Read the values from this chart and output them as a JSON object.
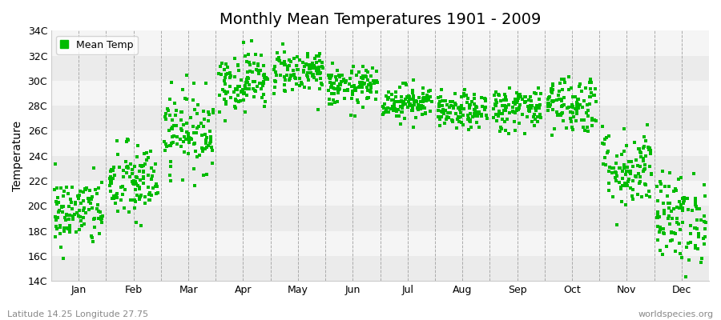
{
  "title": "Monthly Mean Temperatures 1901 - 2009",
  "ylabel": "Temperature",
  "bottom_left_text": "Latitude 14.25 Longitude 27.75",
  "bottom_right_text": "worldspecies.org",
  "legend_label": "Mean Temp",
  "ylim": [
    14,
    34
  ],
  "yticks": [
    14,
    16,
    18,
    20,
    22,
    24,
    26,
    28,
    30,
    32,
    34
  ],
  "ytick_labels": [
    "14C",
    "16C",
    "18C",
    "20C",
    "22C",
    "24C",
    "26C",
    "28C",
    "30C",
    "32C",
    "34C"
  ],
  "month_labels": [
    "Jan",
    "Feb",
    "Mar",
    "Apr",
    "May",
    "Jun",
    "Jul",
    "Aug",
    "Sep",
    "Oct",
    "Nov",
    "Dec"
  ],
  "scatter_color": "#00bb00",
  "fig_bg_color": "#ffffff",
  "plot_bg_color": "#ffffff",
  "band_color_even": "#ebebeb",
  "band_color_odd": "#f5f5f5",
  "n_years": 109,
  "month_means": [
    19.5,
    21.8,
    26.0,
    30.0,
    30.8,
    29.5,
    28.3,
    27.5,
    27.8,
    28.2,
    23.0,
    19.0
  ],
  "month_stds": [
    1.4,
    1.6,
    1.6,
    1.2,
    0.9,
    0.8,
    0.7,
    0.7,
    0.9,
    1.2,
    1.6,
    1.8
  ],
  "title_fontsize": 14,
  "axis_fontsize": 10,
  "tick_fontsize": 9,
  "marker_size": 5
}
